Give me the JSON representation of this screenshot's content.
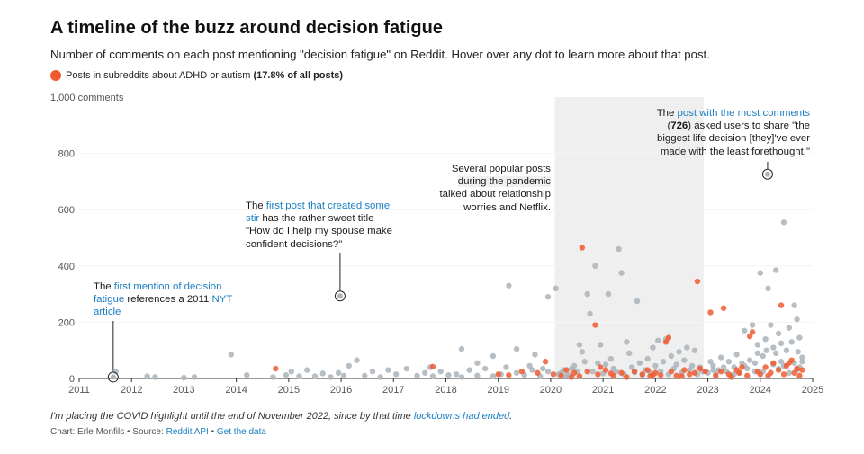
{
  "header": {
    "title": "A timeline of the buzz around decision fatigue",
    "subtitle": "Number of comments on each post mentioning \"decision fatigue\" on Reddit. Hover over any dot to learn more about that post."
  },
  "legend": {
    "label": "Posts in subreddits about ADHD or autism",
    "share": "(17.8% of all posts)"
  },
  "annotations": {
    "first_mention": {
      "pre": "The ",
      "link": "first mention of decision fatigue",
      "mid": " references a 2011 ",
      "link2": "NYT article"
    },
    "first_stir": {
      "pre": "The ",
      "link": "first post that created some stir",
      "post": " has the rather sweet title \"How do I help my spouse make confident decisions?\""
    },
    "pandemic": {
      "l1": "Several popular posts",
      "l2": "during the pandemic",
      "l3": "talked about relationship",
      "l4": "worries and Netflix."
    },
    "most_comments": {
      "pre": "The ",
      "link": "post with the most comments",
      "open": "(",
      "value": "726",
      "post": ") asked users to share \"the biggest life decision [they]'ve ever made with the least forethought.\""
    }
  },
  "footnote": {
    "text": "I'm placing the COVID highlight until the end of November 2022, since by that time ",
    "link": "lockdowns had ended",
    "end": "."
  },
  "source": {
    "credit": "Chart: Erle Monfils",
    "sep1": " • Source: ",
    "api": "Reddit API",
    "sep2": " • ",
    "getdata": "Get the data"
  },
  "colors": {
    "grey": "#aab4bb",
    "orange": "#ef5a31",
    "highlight": "#efefef",
    "link": "#1b7ec2"
  },
  "chart_data": {
    "type": "scatter",
    "title": "A timeline of the buzz around decision fatigue",
    "ylabel": "comments",
    "xlim": [
      2011,
      2025
    ],
    "ylim": [
      0,
      1000
    ],
    "x_ticks": [
      "2011",
      "2012",
      "2013",
      "2014",
      "2015",
      "2016",
      "2017",
      "2018",
      "2019",
      "2020",
      "2021",
      "2022",
      "2023",
      "2024",
      "2025"
    ],
    "y_ticks": [
      "0",
      "200",
      "400",
      "600",
      "800",
      "1,000 comments"
    ],
    "highlight_range": [
      2020.08,
      2022.92
    ],
    "series": [
      {
        "name": "Other posts",
        "color": "#aab4bb",
        "points": [
          [
            2011.7,
            25
          ],
          [
            2012.3,
            8
          ],
          [
            2012.45,
            5
          ],
          [
            2013.0,
            3
          ],
          [
            2013.2,
            5
          ],
          [
            2013.9,
            85
          ],
          [
            2014.2,
            12
          ],
          [
            2014.7,
            5
          ],
          [
            2014.95,
            12
          ],
          [
            2015.05,
            25
          ],
          [
            2015.2,
            8
          ],
          [
            2015.35,
            30
          ],
          [
            2015.5,
            8
          ],
          [
            2015.65,
            18
          ],
          [
            2015.8,
            5
          ],
          [
            2015.95,
            20
          ],
          [
            2016.05,
            10
          ],
          [
            2016.15,
            45
          ],
          [
            2016.3,
            65
          ],
          [
            2016.45,
            10
          ],
          [
            2016.6,
            25
          ],
          [
            2016.75,
            5
          ],
          [
            2016.9,
            30
          ],
          [
            2017.05,
            15
          ],
          [
            2017.25,
            35
          ],
          [
            2017.45,
            10
          ],
          [
            2017.6,
            20
          ],
          [
            2017.75,
            8
          ],
          [
            2017.9,
            25
          ],
          [
            2018.05,
            12
          ],
          [
            2018.2,
            15
          ],
          [
            2018.3,
            5
          ],
          [
            2018.45,
            30
          ],
          [
            2018.6,
            10
          ],
          [
            2018.75,
            35
          ],
          [
            2018.9,
            8
          ],
          [
            2019.05,
            15
          ],
          [
            2019.15,
            40
          ],
          [
            2019.35,
            20
          ],
          [
            2019.5,
            12
          ],
          [
            2019.65,
            30
          ],
          [
            2019.8,
            8
          ],
          [
            2019.95,
            25
          ],
          [
            2018.3,
            105
          ],
          [
            2018.9,
            80
          ],
          [
            2019.2,
            330
          ],
          [
            2019.35,
            105
          ],
          [
            2019.7,
            85
          ],
          [
            2019.95,
            290
          ],
          [
            2020.1,
            320
          ],
          [
            2019.6,
            45
          ],
          [
            2019.85,
            35
          ],
          [
            2018.6,
            55
          ],
          [
            2017.7,
            40
          ],
          [
            2020.2,
            20
          ],
          [
            2020.3,
            10
          ],
          [
            2020.4,
            35
          ],
          [
            2020.5,
            25
          ],
          [
            2020.55,
            120
          ],
          [
            2020.6,
            95
          ],
          [
            2020.7,
            300
          ],
          [
            2020.75,
            230
          ],
          [
            2020.85,
            400
          ],
          [
            2020.95,
            120
          ],
          [
            2021.05,
            50
          ],
          [
            2021.1,
            300
          ],
          [
            2021.3,
            460
          ],
          [
            2021.35,
            375
          ],
          [
            2021.45,
            130
          ],
          [
            2021.5,
            90
          ],
          [
            2021.65,
            275
          ],
          [
            2021.85,
            70
          ],
          [
            2021.95,
            110
          ],
          [
            2022.05,
            135
          ],
          [
            2022.2,
            140
          ],
          [
            2022.3,
            80
          ],
          [
            2022.45,
            95
          ],
          [
            2022.6,
            110
          ],
          [
            2022.75,
            100
          ],
          [
            2022.85,
            40
          ],
          [
            2020.15,
            15
          ],
          [
            2020.25,
            30
          ],
          [
            2020.35,
            12
          ],
          [
            2020.45,
            45
          ],
          [
            2020.65,
            60
          ],
          [
            2020.8,
            25
          ],
          [
            2020.9,
            55
          ],
          [
            2021.0,
            18
          ],
          [
            2021.15,
            70
          ],
          [
            2021.2,
            35
          ],
          [
            2021.25,
            25
          ],
          [
            2021.4,
            15
          ],
          [
            2021.55,
            40
          ],
          [
            2021.6,
            22
          ],
          [
            2021.7,
            55
          ],
          [
            2021.75,
            12
          ],
          [
            2021.8,
            30
          ],
          [
            2021.9,
            20
          ],
          [
            2022.0,
            45
          ],
          [
            2022.1,
            25
          ],
          [
            2022.15,
            60
          ],
          [
            2022.25,
            15
          ],
          [
            2022.35,
            35
          ],
          [
            2022.4,
            50
          ],
          [
            2022.5,
            20
          ],
          [
            2022.55,
            65
          ],
          [
            2022.65,
            30
          ],
          [
            2022.7,
            45
          ],
          [
            2022.8,
            15
          ],
          [
            2022.9,
            25
          ],
          [
            2023.0,
            20
          ],
          [
            2023.05,
            60
          ],
          [
            2023.1,
            45
          ],
          [
            2023.15,
            15
          ],
          [
            2023.2,
            30
          ],
          [
            2023.25,
            75
          ],
          [
            2023.35,
            25
          ],
          [
            2023.4,
            60
          ],
          [
            2023.45,
            10
          ],
          [
            2023.5,
            40
          ],
          [
            2023.55,
            85
          ],
          [
            2023.6,
            20
          ],
          [
            2023.65,
            55
          ],
          [
            2023.7,
            170
          ],
          [
            2023.75,
            35
          ],
          [
            2023.8,
            65
          ],
          [
            2023.85,
            190
          ],
          [
            2023.9,
            25
          ],
          [
            2023.95,
            120
          ],
          [
            2024.0,
            375
          ],
          [
            2024.05,
            80
          ],
          [
            2024.1,
            140
          ],
          [
            2024.15,
            320
          ],
          [
            2024.2,
            190
          ],
          [
            2024.25,
            110
          ],
          [
            2024.3,
            385
          ],
          [
            2024.35,
            160
          ],
          [
            2024.4,
            60
          ],
          [
            2024.45,
            555
          ],
          [
            2024.5,
            100
          ],
          [
            2024.55,
            180
          ],
          [
            2024.6,
            130
          ],
          [
            2024.65,
            260
          ],
          [
            2024.7,
            210
          ],
          [
            2024.75,
            145
          ],
          [
            2024.8,
            75
          ],
          [
            2023.1,
            30
          ],
          [
            2023.3,
            40
          ],
          [
            2023.5,
            15
          ],
          [
            2023.7,
            45
          ],
          [
            2023.9,
            55
          ],
          [
            2024.05,
            25
          ],
          [
            2024.25,
            50
          ],
          [
            2024.35,
            35
          ],
          [
            2024.45,
            45
          ],
          [
            2024.55,
            20
          ],
          [
            2024.65,
            55
          ],
          [
            2024.7,
            30
          ],
          [
            2024.75,
            40
          ],
          [
            2024.8,
            60
          ],
          [
            2024.72,
            95
          ],
          [
            2024.3,
            90
          ],
          [
            2024.12,
            100
          ],
          [
            2023.95,
            90
          ],
          [
            2024.4,
            125
          ]
        ]
      },
      {
        "name": "Posts in subreddits about ADHD or autism",
        "color": "#ef5a31",
        "points": [
          [
            2014.75,
            35
          ],
          [
            2017.75,
            42
          ],
          [
            2019.0,
            15
          ],
          [
            2019.2,
            12
          ],
          [
            2019.45,
            25
          ],
          [
            2019.75,
            20
          ],
          [
            2019.9,
            60
          ],
          [
            2020.05,
            15
          ],
          [
            2020.2,
            10
          ],
          [
            2020.3,
            30
          ],
          [
            2020.45,
            20
          ],
          [
            2020.55,
            8
          ],
          [
            2020.6,
            465
          ],
          [
            2020.85,
            190
          ],
          [
            2020.7,
            25
          ],
          [
            2020.9,
            15
          ],
          [
            2021.05,
            30
          ],
          [
            2021.2,
            10
          ],
          [
            2021.35,
            20
          ],
          [
            2021.45,
            5
          ],
          [
            2021.6,
            25
          ],
          [
            2021.75,
            15
          ],
          [
            2021.85,
            30
          ],
          [
            2021.9,
            8
          ],
          [
            2022.0,
            20
          ],
          [
            2022.1,
            12
          ],
          [
            2022.2,
            130
          ],
          [
            2022.25,
            145
          ],
          [
            2022.3,
            25
          ],
          [
            2022.4,
            10
          ],
          [
            2022.55,
            30
          ],
          [
            2022.65,
            15
          ],
          [
            2022.75,
            20
          ],
          [
            2022.8,
            345
          ],
          [
            2022.85,
            35
          ],
          [
            2022.95,
            25
          ],
          [
            2023.05,
            235
          ],
          [
            2023.15,
            10
          ],
          [
            2023.25,
            25
          ],
          [
            2023.3,
            250
          ],
          [
            2023.4,
            15
          ],
          [
            2023.55,
            30
          ],
          [
            2023.6,
            20
          ],
          [
            2023.75,
            10
          ],
          [
            2023.8,
            150
          ],
          [
            2023.85,
            165
          ],
          [
            2023.95,
            25
          ],
          [
            2024.0,
            15
          ],
          [
            2024.1,
            40
          ],
          [
            2024.2,
            20
          ],
          [
            2024.25,
            55
          ],
          [
            2024.35,
            30
          ],
          [
            2024.4,
            260
          ],
          [
            2024.5,
            45
          ],
          [
            2024.6,
            65
          ],
          [
            2024.65,
            20
          ],
          [
            2024.7,
            35
          ],
          [
            2024.75,
            10
          ],
          [
            2024.8,
            30
          ],
          [
            2024.55,
            55
          ],
          [
            2024.45,
            15
          ],
          [
            2024.15,
            10
          ],
          [
            2023.65,
            40
          ],
          [
            2023.45,
            5
          ],
          [
            2022.5,
            8
          ],
          [
            2021.95,
            12
          ],
          [
            2021.15,
            18
          ],
          [
            2020.95,
            40
          ],
          [
            2020.4,
            5
          ]
        ]
      }
    ],
    "annotated_points": [
      {
        "name": "first-mention",
        "x": 2011.65,
        "y": 5
      },
      {
        "name": "first-stir",
        "x": 2015.98,
        "y": 293
      },
      {
        "name": "most-comments",
        "x": 2024.14,
        "y": 726
      }
    ]
  }
}
